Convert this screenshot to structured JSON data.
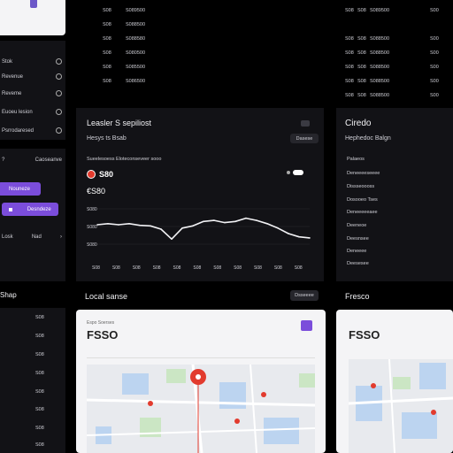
{
  "sidebar": {
    "items": [
      {
        "label": "Stok"
      },
      {
        "label": "Revenue"
      },
      {
        "label": "Reveme"
      },
      {
        "label": "Euoeu lesion"
      },
      {
        "label": "Psrrodaresed"
      }
    ],
    "section_label": "Caoseanve",
    "primary_button": "Nouneze",
    "secondary_button": "Desndeze",
    "footer_left": "Losk",
    "footer_right": "Nad"
  },
  "top_table": {
    "rows": [
      [
        "S08",
        "S089500"
      ],
      [
        "S08",
        "S088500"
      ],
      [
        "S08",
        "S088580"
      ],
      [
        "S08",
        "S080500"
      ],
      [
        "S08",
        "S085500"
      ],
      [
        "S08",
        "S086500"
      ]
    ]
  },
  "right_table": {
    "rows": [
      [
        "S08",
        "S08",
        "S089500",
        "S00"
      ],
      [
        "S08",
        "S08",
        "S088500",
        "S00"
      ],
      [
        "S08",
        "S08",
        "S088500",
        "S00"
      ],
      [
        "S08",
        "S08",
        "S088500",
        "S00"
      ],
      [
        "S08",
        "S08",
        "S088500",
        "S00"
      ],
      [
        "S08",
        "S08",
        "S088500",
        "S00"
      ]
    ]
  },
  "chart_panel": {
    "title": "Leasler S sepiliost",
    "subtitle": "Hesys ts Bsab",
    "pill": "Dasese",
    "legend_text": "Sueelesoess Eloteconseveer sooo",
    "value_1": "S80",
    "value_2": "€S80",
    "y_ticks": [
      "S080",
      "S080",
      "S080"
    ],
    "x_ticks": [
      "S08",
      "S08",
      "S08",
      "S08",
      "S08",
      "S08",
      "S08",
      "S08",
      "S08",
      "S08",
      "S08"
    ]
  },
  "chart_data": {
    "type": "line",
    "x": [
      0,
      1,
      2,
      3,
      4,
      5,
      6,
      7,
      8,
      9,
      10,
      11,
      12,
      13,
      14,
      15,
      16,
      17,
      18,
      19,
      20
    ],
    "values": [
      58,
      60,
      58,
      60,
      57,
      56,
      50,
      32,
      52,
      56,
      64,
      66,
      62,
      64,
      70,
      66,
      60,
      52,
      42,
      36,
      34
    ],
    "ylim": [
      0,
      100
    ]
  },
  "right_panel": {
    "title": "Ciredo",
    "subtitle": "Hephedoc Balgn",
    "items": [
      "Palaeos",
      "Deneeeeseeee",
      "Dissseoooss",
      "Dosooeo Tses",
      "Deneeeeeaee",
      "Deeneoe",
      "Deesnsee",
      "Deneeee",
      "Deesesee"
    ]
  },
  "left_bottom": {
    "header": "Shap",
    "rows": [
      "S08",
      "S08",
      "S08",
      "S08",
      "S08",
      "S08",
      "S08",
      "S08"
    ]
  },
  "local_panel": {
    "title": "Local sanse",
    "pill": "Dsseeee"
  },
  "map_card_1": {
    "label": "Espo Soerses",
    "title": "FSSO"
  },
  "right_bottom": {
    "title": "Fresco"
  },
  "map_card_2": {
    "title": "FSSO"
  },
  "colors": {
    "accent": "#7b4ddb",
    "marker": "#e23b2e",
    "panel": "#121216"
  }
}
